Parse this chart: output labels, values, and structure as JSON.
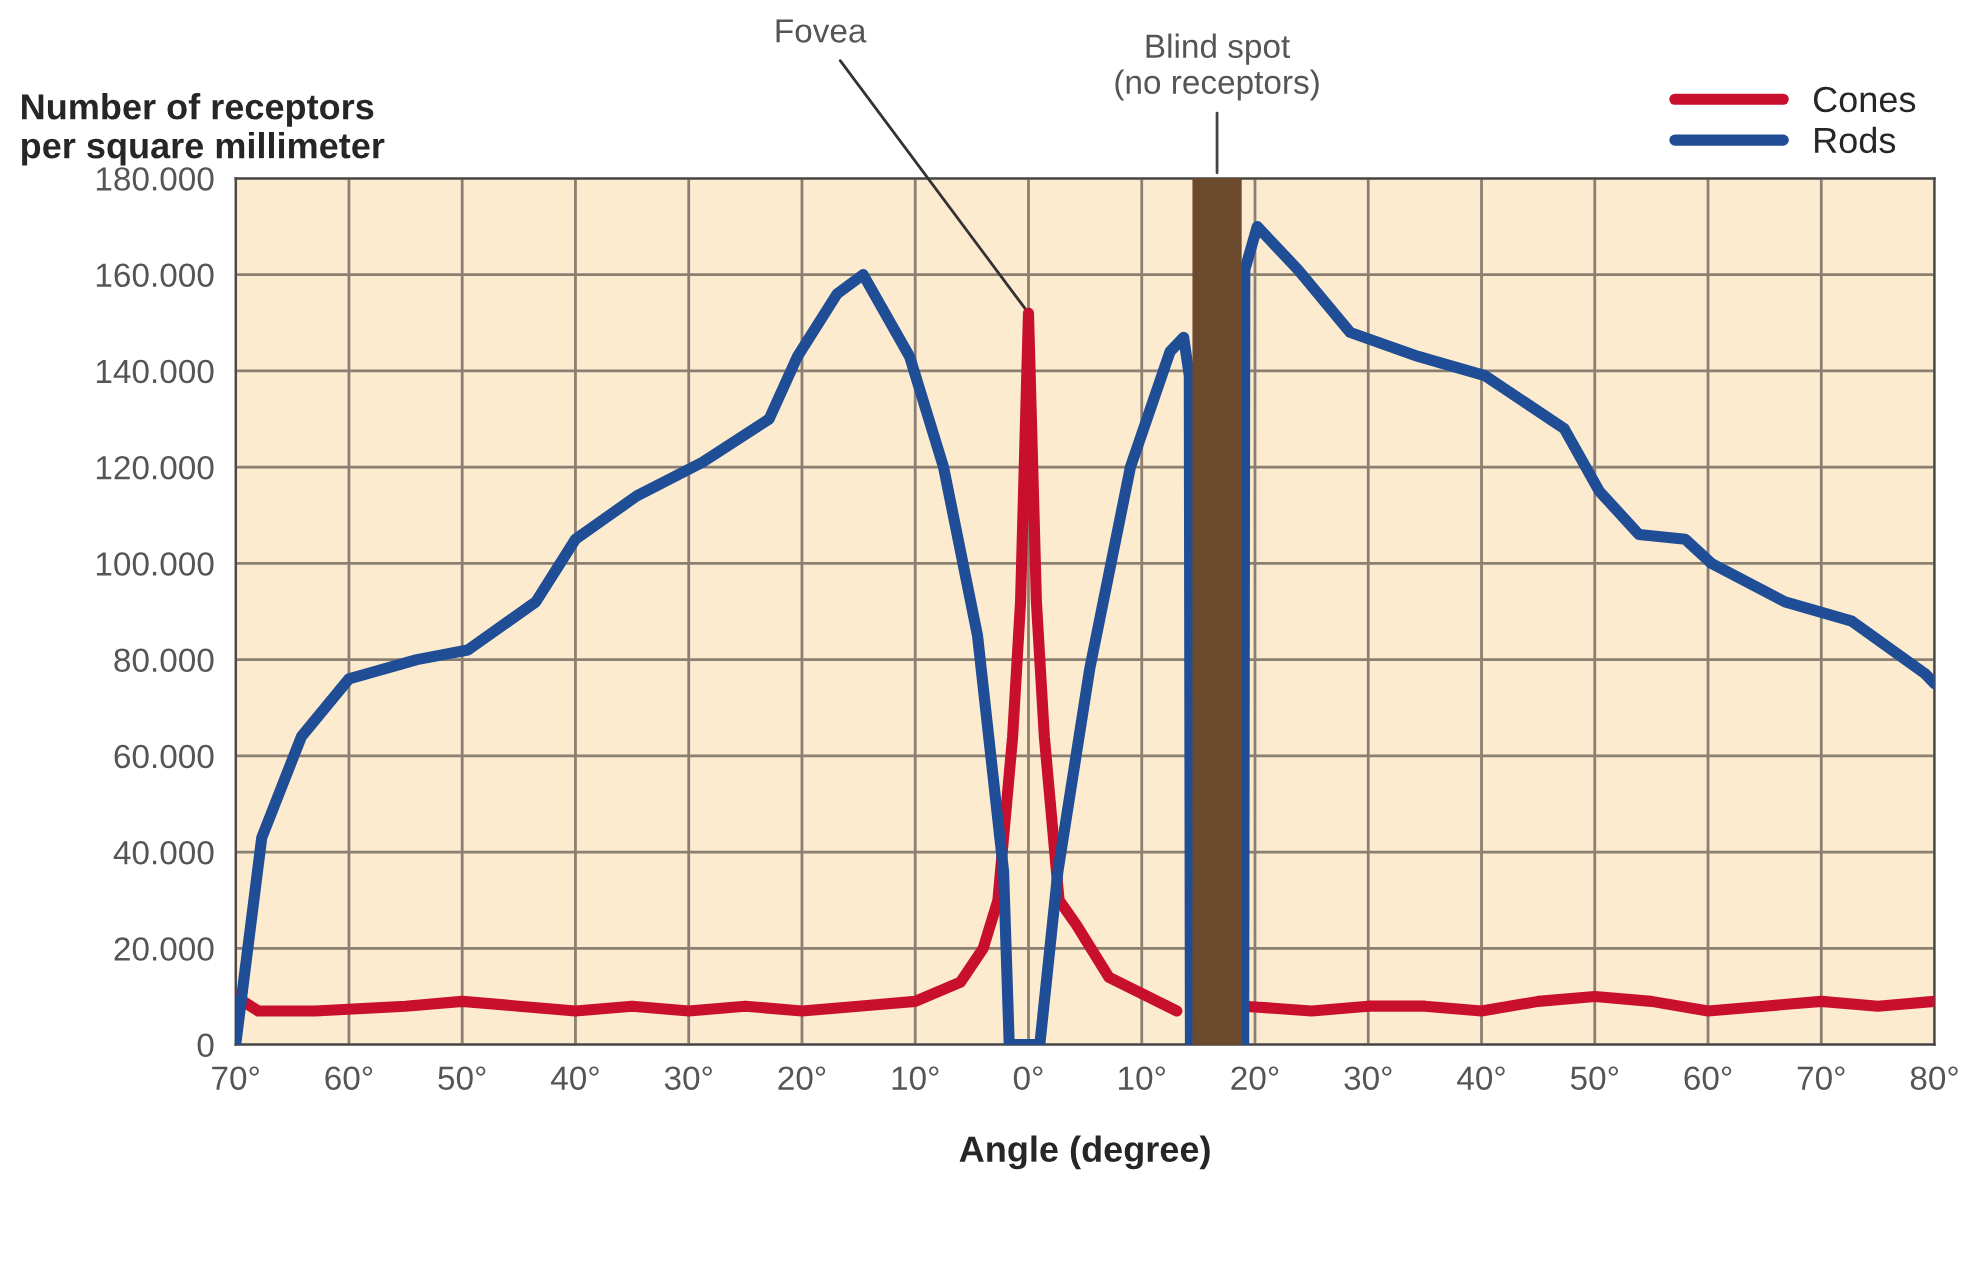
{
  "chart_data": {
    "type": "line",
    "xlabel": "Angle (degree)",
    "ylabel": "Number of receptors\nper square millimeter",
    "xlim": [
      -70,
      80
    ],
    "ylim": [
      0,
      180000
    ],
    "xticks": [
      {
        "value": -70,
        "label": "70°"
      },
      {
        "value": -60,
        "label": "60°"
      },
      {
        "value": -50,
        "label": "50°"
      },
      {
        "value": -40,
        "label": "40°"
      },
      {
        "value": -30,
        "label": "30°"
      },
      {
        "value": -20,
        "label": "20°"
      },
      {
        "value": -10,
        "label": "10°"
      },
      {
        "value": 0,
        "label": "0°"
      },
      {
        "value": 10,
        "label": "10°"
      },
      {
        "value": 20,
        "label": "20°"
      },
      {
        "value": 30,
        "label": "30°"
      },
      {
        "value": 40,
        "label": "40°"
      },
      {
        "value": 50,
        "label": "50°"
      },
      {
        "value": 60,
        "label": "60°"
      },
      {
        "value": 70,
        "label": "70°"
      },
      {
        "value": 80,
        "label": "80°"
      }
    ],
    "yticks": [
      0,
      {
        "value": 20000,
        "label": "20.000"
      },
      {
        "value": 40000,
        "label": "40.000"
      },
      {
        "value": 60000,
        "label": "60.000"
      },
      {
        "value": 80000,
        "label": "80.000"
      },
      {
        "value": 100000,
        "label": "100.000"
      },
      {
        "value": 120000,
        "label": "120.000"
      },
      {
        "value": 140000,
        "label": "140.000"
      },
      {
        "value": 160000,
        "label": "160.000"
      },
      {
        "value": 180000,
        "label": "180.000"
      }
    ],
    "grid": true,
    "legend": "top right",
    "line_style": "solid",
    "marker": "none",
    "series": [
      {
        "name": "Cones",
        "color": "#c8102e",
        "x": [
          -70,
          -68,
          -63,
          -55,
          -50,
          -45,
          -40,
          -35,
          -30,
          -25,
          -20,
          -15,
          -10,
          -6,
          -4,
          -2.7,
          -1.4,
          -0.7,
          0,
          0.7,
          1.4,
          2.7,
          4.2,
          7.1,
          13.1,
          16.5,
          19,
          25,
          30,
          35,
          40,
          45,
          50,
          55,
          60,
          65,
          70,
          75,
          80
        ],
        "values": [
          10000,
          7000,
          7000,
          8000,
          9000,
          8000,
          7000,
          8000,
          7000,
          8000,
          7000,
          8000,
          9000,
          13000,
          20000,
          30000,
          64000,
          92000,
          152000,
          92000,
          64000,
          30000,
          25000,
          14000,
          7000,
          null,
          8000,
          7000,
          8000,
          8000,
          7000,
          9000,
          10000,
          9000,
          7000,
          8000,
          9000,
          8000,
          9000
        ]
      },
      {
        "name": "Rods",
        "color": "#1f4e96",
        "x": [
          -70,
          -67.7,
          -64.2,
          -60,
          -54,
          -49.5,
          -43.5,
          -40,
          -34.6,
          -28.8,
          -22.9,
          -20.4,
          -16.9,
          -14.6,
          -10.5,
          -7.5,
          -4.5,
          -2.2,
          -1.7,
          1,
          2.6,
          5.4,
          9,
          12.5,
          13.7,
          14.2,
          14.3,
          16.5,
          19,
          19.1,
          20.2,
          23.8,
          28.4,
          34.4,
          40.3,
          47.3,
          50.4,
          53.9,
          58,
          60.3,
          66.8,
          72.7,
          79.2,
          80
        ],
        "values": [
          0,
          43000,
          64000,
          76000,
          80000,
          82000,
          92000,
          105000,
          114000,
          121000,
          130000,
          143000,
          156000,
          160000,
          143000,
          120000,
          85000,
          36000,
          0,
          0,
          36000,
          78000,
          120000,
          144000,
          147000,
          139000,
          0,
          null,
          0,
          161000,
          170000,
          161000,
          148000,
          143000,
          139000,
          128000,
          115000,
          106000,
          105000,
          100000,
          92000,
          88000,
          77000,
          75000
        ]
      }
    ],
    "bands": [
      {
        "axis": "x",
        "from": 14.6,
        "to": 18.7,
        "label": "Blind spot\n(no receptors)",
        "color": "#6b4a2e"
      }
    ],
    "annotations": [
      {
        "text": "Fovea",
        "x": 0,
        "y": 152000
      }
    ]
  }
}
